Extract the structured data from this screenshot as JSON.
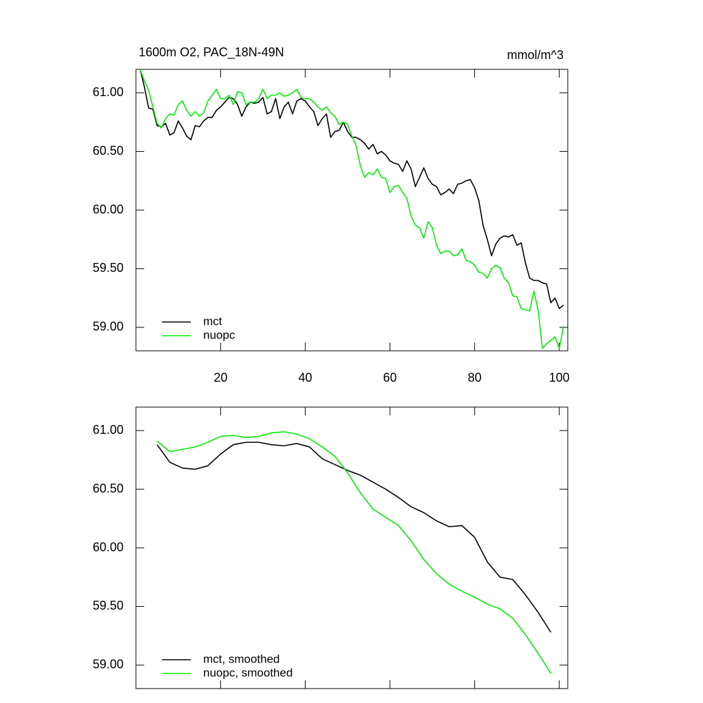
{
  "chart_data": [
    {
      "type": "line",
      "title": "1600m O2, PAC_18N-49N",
      "units": "mmol/m^3",
      "x": [
        1,
        2,
        3,
        4,
        5,
        6,
        7,
        8,
        9,
        10,
        11,
        12,
        13,
        14,
        15,
        16,
        17,
        18,
        19,
        20,
        21,
        22,
        23,
        24,
        25,
        26,
        27,
        28,
        29,
        30,
        31,
        32,
        33,
        34,
        35,
        36,
        37,
        38,
        39,
        40,
        41,
        42,
        43,
        44,
        45,
        46,
        47,
        48,
        49,
        50,
        51,
        52,
        53,
        54,
        55,
        56,
        57,
        58,
        59,
        60,
        61,
        62,
        63,
        64,
        65,
        66,
        67,
        68,
        69,
        70,
        71,
        72,
        73,
        74,
        75,
        76,
        77,
        78,
        79,
        80,
        81,
        82,
        83,
        84,
        85,
        86,
        87,
        88,
        89,
        90,
        91,
        92,
        93,
        94,
        95,
        96,
        97,
        98,
        99,
        100,
        101
      ],
      "series": [
        {
          "name": "mct",
          "color": "#000000",
          "values": [
            61.2,
            61.05,
            60.87,
            60.86,
            60.72,
            60.71,
            60.74,
            60.64,
            60.66,
            60.76,
            60.7,
            60.63,
            60.6,
            60.72,
            60.71,
            60.76,
            60.79,
            60.79,
            60.85,
            60.88,
            60.92,
            60.96,
            60.95,
            60.9,
            60.8,
            60.88,
            60.92,
            60.91,
            60.92,
            60.96,
            60.82,
            60.84,
            60.95,
            60.78,
            60.88,
            60.92,
            60.82,
            60.93,
            60.95,
            60.93,
            60.88,
            60.84,
            60.72,
            60.78,
            60.82,
            60.62,
            60.67,
            60.68,
            60.75,
            60.67,
            60.62,
            60.62,
            60.6,
            60.57,
            60.52,
            60.56,
            60.48,
            60.5,
            60.47,
            60.42,
            60.4,
            60.39,
            60.33,
            60.42,
            60.35,
            60.2,
            60.28,
            60.36,
            60.27,
            60.22,
            60.2,
            60.13,
            60.15,
            60.18,
            60.14,
            60.22,
            60.23,
            60.25,
            60.26,
            60.19,
            60.08,
            59.87,
            59.75,
            59.61,
            59.71,
            59.76,
            59.78,
            59.77,
            59.79,
            59.7,
            59.72,
            59.55,
            59.42,
            59.4,
            59.4,
            59.38,
            59.37,
            59.21,
            59.25,
            59.16,
            59.19
          ]
        },
        {
          "name": "nuopc",
          "color": "#00ee00",
          "values": [
            61.2,
            61.1,
            61.02,
            60.88,
            60.74,
            60.7,
            60.78,
            60.82,
            60.81,
            60.9,
            60.93,
            60.85,
            60.8,
            60.84,
            60.8,
            60.83,
            60.93,
            60.98,
            61.03,
            60.95,
            60.95,
            60.98,
            60.9,
            61.01,
            61.0,
            60.9,
            60.92,
            60.92,
            60.95,
            61.03,
            60.95,
            60.98,
            60.98,
            61.0,
            60.97,
            60.98,
            61.0,
            61.03,
            60.96,
            60.95,
            60.95,
            60.92,
            60.88,
            60.85,
            60.88,
            60.83,
            60.8,
            60.73,
            60.75,
            60.73,
            60.63,
            60.55,
            60.38,
            60.28,
            60.32,
            60.3,
            60.35,
            60.28,
            60.27,
            60.15,
            60.2,
            60.21,
            60.15,
            60.1,
            59.95,
            59.87,
            59.85,
            59.76,
            59.9,
            59.85,
            59.7,
            59.63,
            59.65,
            59.65,
            59.61,
            59.62,
            59.67,
            59.57,
            59.56,
            59.53,
            59.47,
            59.46,
            59.42,
            59.5,
            59.53,
            59.51,
            59.42,
            59.38,
            59.27,
            59.26,
            59.16,
            59.15,
            59.14,
            59.31,
            59.15,
            58.82,
            58.86,
            58.89,
            58.92,
            58.82,
            59.01
          ]
        }
      ],
      "xlim": [
        0,
        102
      ],
      "ylim": [
        58.8,
        61.2
      ],
      "xticks": [
        20,
        40,
        60,
        80,
        100
      ],
      "xtick_labels": true,
      "yticks": [
        {
          "value": 59,
          "label": "59.00"
        },
        {
          "value": 59.5,
          "label": "59.50"
        },
        {
          "value": 60,
          "label": "60.00"
        },
        {
          "value": 60.5,
          "label": "60.50"
        },
        {
          "value": 61,
          "label": "61.00"
        }
      ],
      "legend": "lower left"
    },
    {
      "type": "line",
      "x": [
        5,
        8,
        11,
        14,
        17,
        20,
        23,
        26,
        29,
        32,
        35,
        38,
        41,
        44,
        47,
        50,
        53,
        56,
        59,
        62,
        65,
        68,
        71,
        74,
        77,
        80,
        83,
        86,
        89,
        92,
        95,
        98
      ],
      "series": [
        {
          "name": "mct, smoothed",
          "color": "#000000",
          "values": [
            60.88,
            60.73,
            60.68,
            60.67,
            60.7,
            60.8,
            60.88,
            60.9,
            60.9,
            60.88,
            60.87,
            60.89,
            60.86,
            60.76,
            60.71,
            60.66,
            60.62,
            60.56,
            60.5,
            60.43,
            60.35,
            60.3,
            60.23,
            60.18,
            60.19,
            60.09,
            59.88,
            59.75,
            59.73,
            59.6,
            59.45,
            59.28
          ]
        },
        {
          "name": "nuopc, smoothed",
          "color": "#00ee00",
          "values": [
            60.91,
            60.82,
            60.84,
            60.86,
            60.9,
            60.95,
            60.96,
            60.94,
            60.95,
            60.98,
            60.99,
            60.97,
            60.93,
            60.86,
            60.78,
            60.64,
            60.47,
            60.33,
            60.26,
            60.19,
            60.06,
            59.9,
            59.78,
            59.69,
            59.63,
            59.58,
            59.52,
            59.48,
            59.4,
            59.26,
            59.1,
            58.93
          ]
        }
      ],
      "xlim": [
        0,
        102
      ],
      "ylim": [
        58.8,
        61.2
      ],
      "xticks": [
        20,
        40,
        60,
        80,
        100
      ],
      "xtick_labels": false,
      "yticks": [
        {
          "value": 59,
          "label": "59.00"
        },
        {
          "value": 59.5,
          "label": "59.50"
        },
        {
          "value": 60,
          "label": "60.00"
        },
        {
          "value": 60.5,
          "label": "60.50"
        },
        {
          "value": 61,
          "label": "61.00"
        }
      ],
      "legend": "lower left"
    }
  ]
}
